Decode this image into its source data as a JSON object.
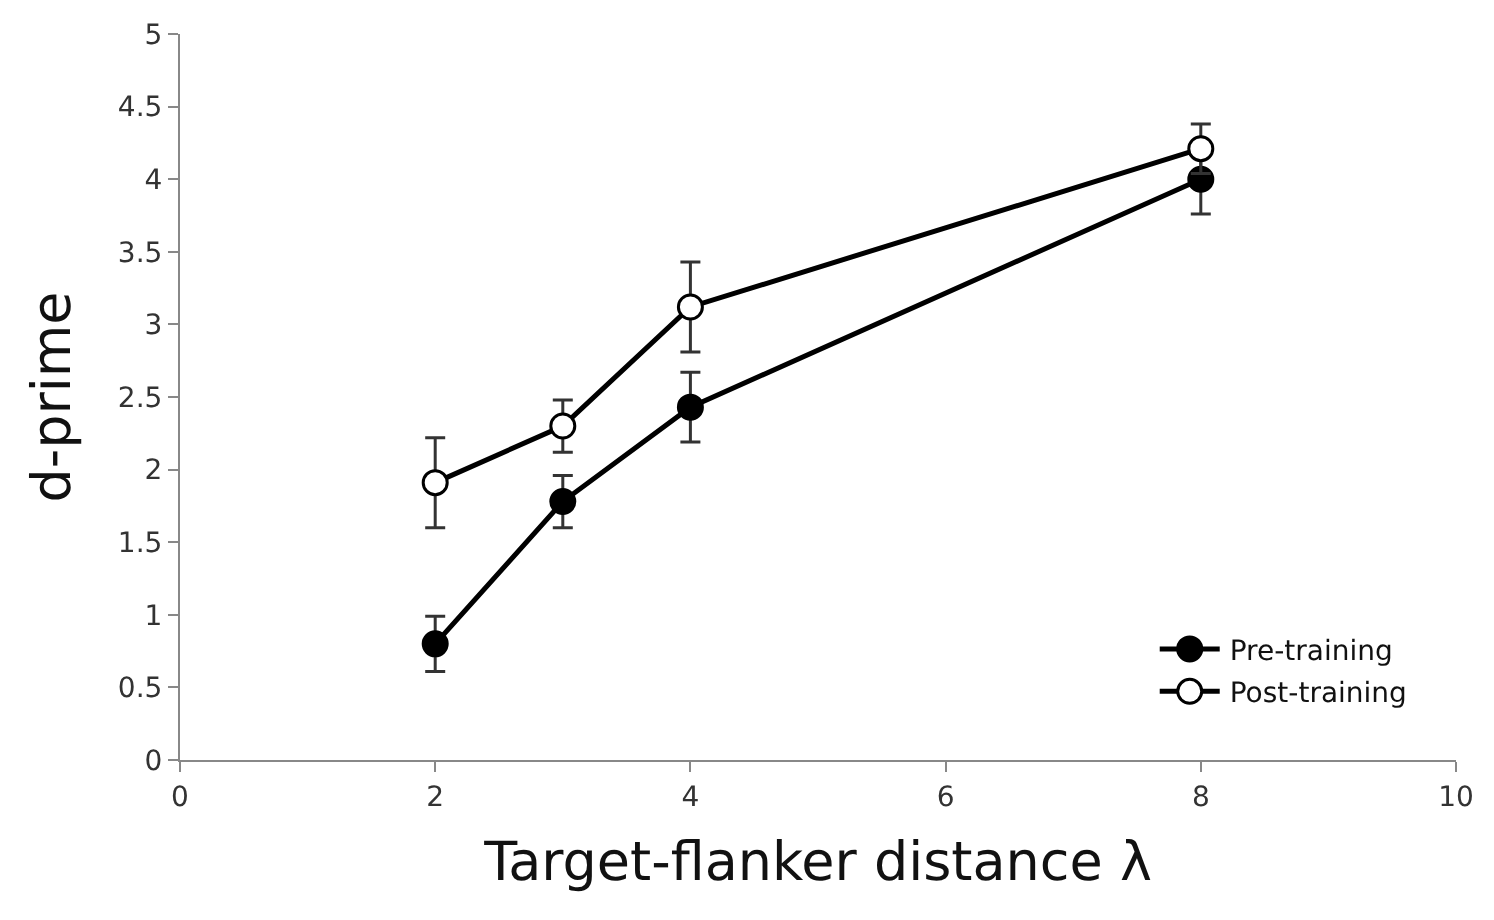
{
  "chart_data": {
    "type": "line",
    "xlabel": "Target-flanker distance λ",
    "ylabel": "d-prime",
    "x": [
      2,
      3,
      4,
      8
    ],
    "series": [
      {
        "name": "Pre-training",
        "color": "#000000",
        "values": [
          0.8,
          1.78,
          2.43,
          4.0
        ],
        "errors": [
          0.19,
          0.18,
          0.24,
          0.24
        ]
      },
      {
        "name": "Post-training",
        "color": "#000000",
        "values": [
          1.91,
          2.3,
          3.12,
          4.21
        ],
        "errors": [
          0.31,
          0.18,
          0.31,
          0.17
        ]
      }
    ],
    "xlim": [
      0,
      10
    ],
    "xticks": [
      0,
      2,
      4,
      6,
      8,
      10
    ],
    "ylim": [
      0,
      5
    ],
    "yticks": [
      0,
      0.5,
      1,
      1.5,
      2,
      2.5,
      3,
      3.5,
      4,
      4.5,
      5
    ],
    "legend": "bottom right",
    "marker": "circle",
    "line_style": "solid"
  }
}
